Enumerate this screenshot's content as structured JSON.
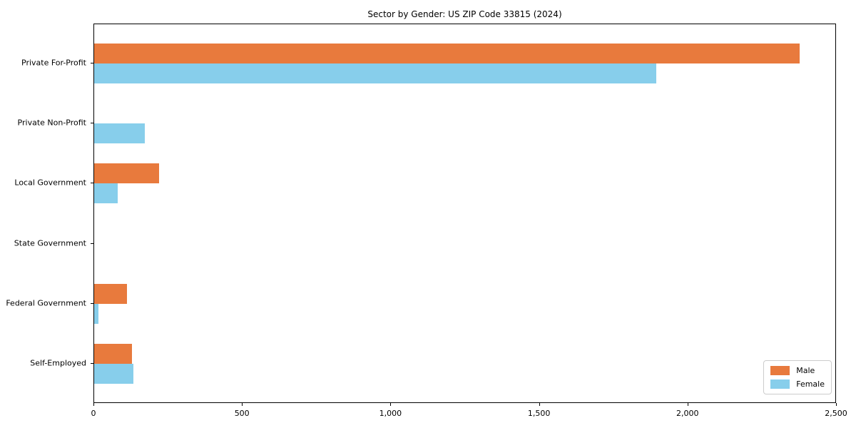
{
  "chart_data": {
    "type": "bar",
    "orientation": "horizontal",
    "title": "Sector by Gender: US ZIP Code 33815 (2024)",
    "categories": [
      "Private For-Profit",
      "Private Non-Profit",
      "Local Government",
      "State Government",
      "Federal Government",
      "Self-Employed"
    ],
    "series": [
      {
        "name": "Male",
        "color": "#e87a3d",
        "values": [
          2380,
          0,
          220,
          0,
          110,
          127
        ]
      },
      {
        "name": "Female",
        "color": "#87ceeb",
        "values": [
          1895,
          170,
          80,
          0,
          15,
          132
        ]
      }
    ],
    "xlabel": "",
    "ylabel": "",
    "xlim": [
      0,
      2500
    ],
    "xticks": [
      0,
      500,
      1000,
      1500,
      2000,
      2500
    ],
    "xtick_labels": [
      "0",
      "500",
      "1,000",
      "1,500",
      "2,000",
      "2,500"
    ],
    "grid": false,
    "legend_position": "lower right",
    "plot_border_color": "#000000",
    "background_color": "#ffffff"
  }
}
